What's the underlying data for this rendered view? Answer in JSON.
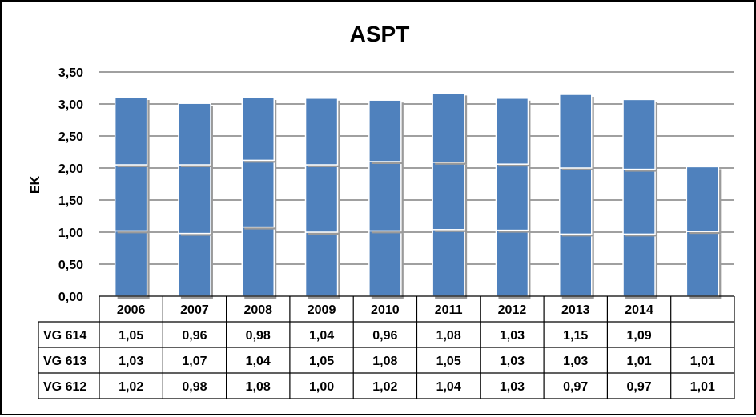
{
  "chart_data": {
    "type": "bar",
    "stacked": true,
    "title": "ASPT",
    "xlabel": "",
    "ylabel": "EK",
    "ylim": [
      0,
      3.5
    ],
    "yticks": [
      "0,00",
      "0,50",
      "1,00",
      "1,50",
      "2,00",
      "2,50",
      "3,00",
      "3,50"
    ],
    "grid": true,
    "legend": "none",
    "categories": [
      "2006",
      "2007",
      "2008",
      "2009",
      "2010",
      "2011",
      "2012",
      "2013",
      "2014",
      ""
    ],
    "series": [
      {
        "name": "VG 612",
        "values": [
          1.02,
          0.98,
          1.08,
          1.0,
          1.02,
          1.04,
          1.03,
          0.97,
          0.97,
          1.01
        ],
        "labels": [
          "1,02",
          "0,98",
          "1,08",
          "1,00",
          "1,02",
          "1,04",
          "1,03",
          "0,97",
          "0,97",
          "1,01"
        ]
      },
      {
        "name": "VG 613",
        "values": [
          1.03,
          1.07,
          1.04,
          1.05,
          1.08,
          1.05,
          1.03,
          1.03,
          1.01,
          1.01
        ],
        "labels": [
          "1,03",
          "1,07",
          "1,04",
          "1,05",
          "1,08",
          "1,05",
          "1,03",
          "1,03",
          "1,01",
          "1,01"
        ]
      },
      {
        "name": "VG 614",
        "values": [
          1.05,
          0.96,
          0.98,
          1.04,
          0.96,
          1.08,
          1.03,
          1.15,
          1.09,
          null
        ],
        "labels": [
          "1,05",
          "0,96",
          "0,98",
          "1,04",
          "0,96",
          "1,08",
          "1,03",
          "1,15",
          "1,09",
          ""
        ]
      }
    ],
    "table_row_order": [
      "VG 614",
      "VG 613",
      "VG 612"
    ],
    "bar_color": "#4f81bd",
    "gridline_color": "#808080"
  }
}
